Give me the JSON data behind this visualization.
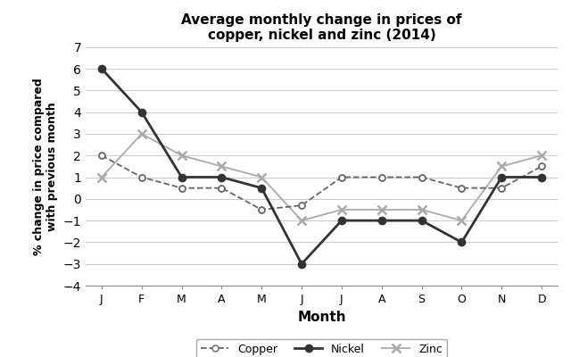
{
  "title": "Average monthly change in prices of\ncopper, nickel and zinc (2014)",
  "xlabel": "Month",
  "ylabel": "% change in price compared\nwith previous month",
  "months": [
    "J",
    "F",
    "M",
    "A",
    "M",
    "J",
    "J",
    "A",
    "S",
    "O",
    "N",
    "D"
  ],
  "copper": [
    2,
    1,
    0.5,
    0.5,
    -0.5,
    -0.3,
    1,
    1,
    1,
    0.5,
    0.5,
    1.5
  ],
  "nickel": [
    6,
    4,
    1,
    1,
    0.5,
    -3,
    -1,
    -1,
    -1,
    -2,
    1,
    1
  ],
  "zinc": [
    1,
    3,
    2,
    1.5,
    1,
    -1,
    -0.5,
    -0.5,
    -0.5,
    -1,
    1.5,
    2
  ],
  "ylim": [
    -4,
    7
  ],
  "yticks": [
    -4,
    -3,
    -2,
    -1,
    0,
    1,
    2,
    3,
    4,
    5,
    6,
    7
  ],
  "copper_color": "#666666",
  "nickel_color": "#333333",
  "zinc_color": "#aaaaaa",
  "bg_color": "#ffffff",
  "grid_color": "#cccccc"
}
